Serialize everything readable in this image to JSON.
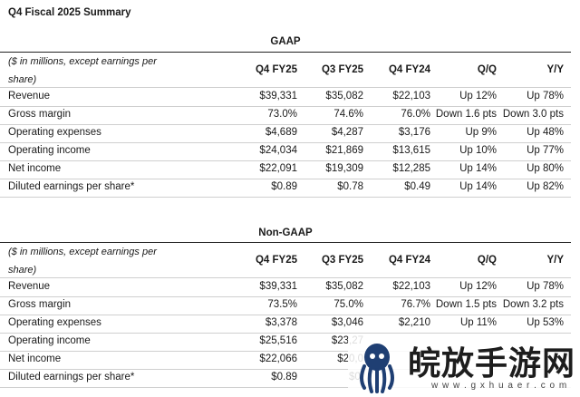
{
  "title": "Q4 Fiscal 2025 Summary",
  "gaap": {
    "heading": "GAAP",
    "units": "($ in millions, except earnings per share)",
    "columns": [
      "Q4 FY25",
      "Q3 FY25",
      "Q4 FY24",
      "Q/Q",
      "Y/Y"
    ],
    "rows": [
      {
        "label": "Revenue",
        "cells": [
          "$39,331",
          "$35,082",
          "$22,103",
          "Up 12%",
          "Up 78%"
        ]
      },
      {
        "label": "Gross margin",
        "cells": [
          "73.0%",
          "74.6%",
          "76.0%",
          "Down 1.6 pts",
          "Down 3.0 pts"
        ]
      },
      {
        "label": "Operating expenses",
        "cells": [
          "$4,689",
          "$4,287",
          "$3,176",
          "Up 9%",
          "Up 48%"
        ]
      },
      {
        "label": "Operating income",
        "cells": [
          "$24,034",
          "$21,869",
          "$13,615",
          "Up 10%",
          "Up 77%"
        ]
      },
      {
        "label": "Net income",
        "cells": [
          "$22,091",
          "$19,309",
          "$12,285",
          "Up 14%",
          "Up 80%"
        ]
      },
      {
        "label": "Diluted earnings per share*",
        "cells": [
          "$0.89",
          "$0.78",
          "$0.49",
          "Up 14%",
          "Up 82%"
        ]
      }
    ]
  },
  "nongaap": {
    "heading": "Non-GAAP",
    "units": "($ in millions, except earnings per share)",
    "columns": [
      "Q4 FY25",
      "Q3 FY25",
      "Q4 FY24",
      "Q/Q",
      "Y/Y"
    ],
    "rows": [
      {
        "label": "Revenue",
        "cells": [
          "$39,331",
          "$35,082",
          "$22,103",
          "Up 12%",
          "Up 78%"
        ]
      },
      {
        "label": "Gross margin",
        "cells": [
          "73.5%",
          "75.0%",
          "76.7%",
          "Down 1.5 pts",
          "Down 3.2 pts"
        ]
      },
      {
        "label": "Operating expenses",
        "cells": [
          "$3,378",
          "$3,046",
          "$2,210",
          "Up 11%",
          "Up 53%"
        ]
      },
      {
        "label": "Operating income",
        "cells": [
          "$25,516",
          "$23,27",
          "",
          "",
          ""
        ]
      },
      {
        "label": "Net income",
        "cells": [
          "$22,066",
          "$20,0",
          "",
          "",
          ""
        ]
      },
      {
        "label": "Diluted earnings per share*",
        "cells": [
          "$0.89",
          "$0.",
          "",
          "",
          ""
        ]
      }
    ]
  },
  "watermark": {
    "brand": "皖放手游网",
    "url": "w w w . g x h u a e r . c o m",
    "icon": "octopus-logo-icon"
  }
}
